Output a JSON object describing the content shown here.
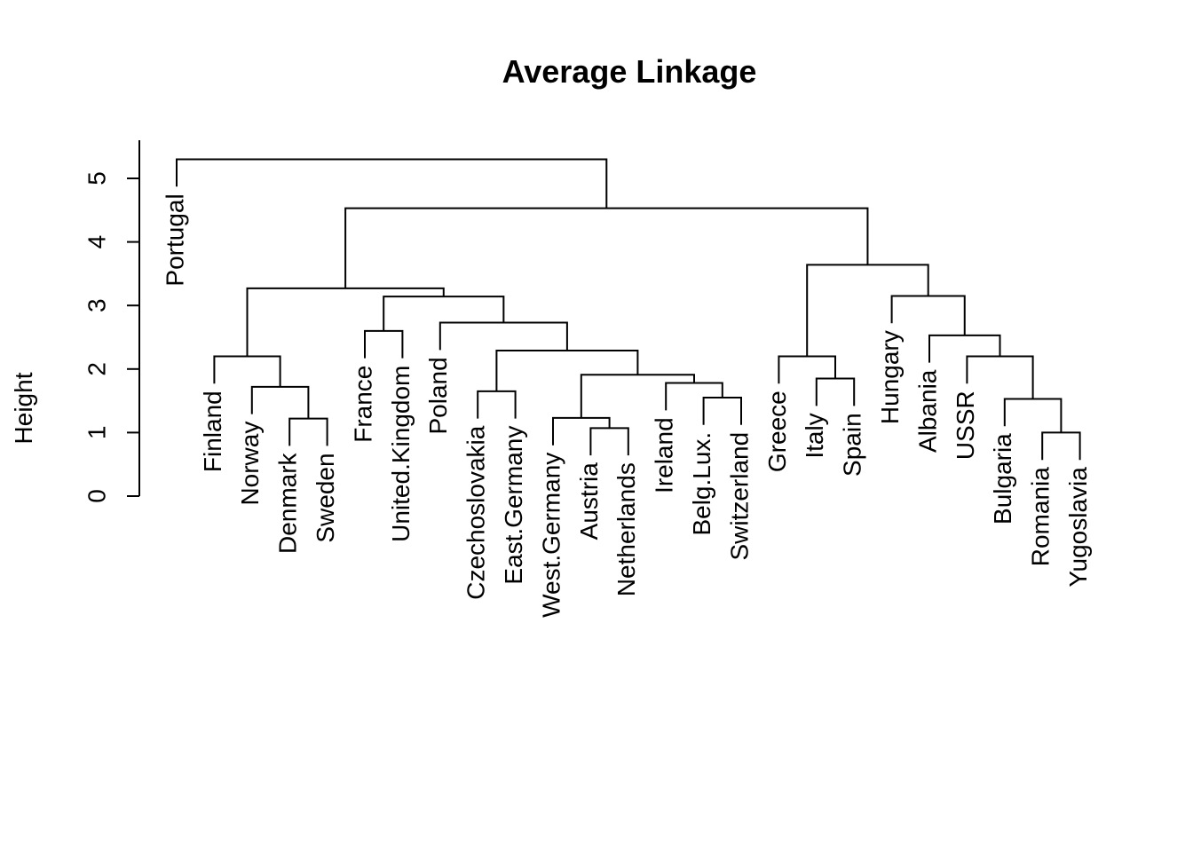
{
  "chart_data": {
    "type": "dendrogram",
    "title": "Average Linkage",
    "ylabel": "Height",
    "xlabel": "",
    "ylim": [
      0,
      5.6
    ],
    "yticks": [
      0,
      1,
      2,
      3,
      4,
      5
    ],
    "leaves": [
      "Portugal",
      "Finland",
      "Norway",
      "Denmark",
      "Sweden",
      "France",
      "United.Kingdom",
      "Poland",
      "Czechoslovakia",
      "East.Germany",
      "West.Germany",
      "Austria",
      "Netherlands",
      "Ireland",
      "Belg.Lux.",
      "Switzerland",
      "Greece",
      "Italy",
      "Spain",
      "Hungary",
      "Albania",
      "USSR",
      "Bulgaria",
      "Romania",
      "Yugoslavia"
    ],
    "merges": [
      {
        "left": "Denmark",
        "right": "Sweden",
        "height": 1.22
      },
      {
        "left": "Norway",
        "right": "m1",
        "height": 1.72
      },
      {
        "left": "Finland",
        "right": "m2",
        "height": 2.2
      },
      {
        "left": "France",
        "right": "United.Kingdom",
        "height": 2.6
      },
      {
        "left": "Czechoslovakia",
        "right": "East.Germany",
        "height": 1.65
      },
      {
        "left": "Austria",
        "right": "Netherlands",
        "height": 1.07
      },
      {
        "left": "West.Germany",
        "right": "m6",
        "height": 1.23
      },
      {
        "left": "Belg.Lux.",
        "right": "Switzerland",
        "height": 1.55
      },
      {
        "left": "Ireland",
        "right": "m8",
        "height": 1.78
      },
      {
        "left": "m7",
        "right": "m9",
        "height": 1.91
      },
      {
        "left": "m5",
        "right": "m10",
        "height": 2.29
      },
      {
        "left": "Poland",
        "right": "m11",
        "height": 2.73
      },
      {
        "left": "m4",
        "right": "m12",
        "height": 3.14
      },
      {
        "left": "m3",
        "right": "m13",
        "height": 3.27
      },
      {
        "left": "Italy",
        "right": "Spain",
        "height": 1.85
      },
      {
        "left": "Greece",
        "right": "m15",
        "height": 2.2
      },
      {
        "left": "Romania",
        "right": "Yugoslavia",
        "height": 1.0
      },
      {
        "left": "Bulgaria",
        "right": "m17",
        "height": 1.53
      },
      {
        "left": "USSR",
        "right": "m18",
        "height": 2.2
      },
      {
        "left": "Albania",
        "right": "m19",
        "height": 2.53
      },
      {
        "left": "Hungary",
        "right": "m20",
        "height": 3.15
      },
      {
        "left": "m16",
        "right": "m21",
        "height": 3.64
      },
      {
        "left": "m14",
        "right": "m22",
        "height": 4.53
      },
      {
        "left": "Portugal",
        "right": "m23",
        "height": 5.3
      }
    ]
  }
}
